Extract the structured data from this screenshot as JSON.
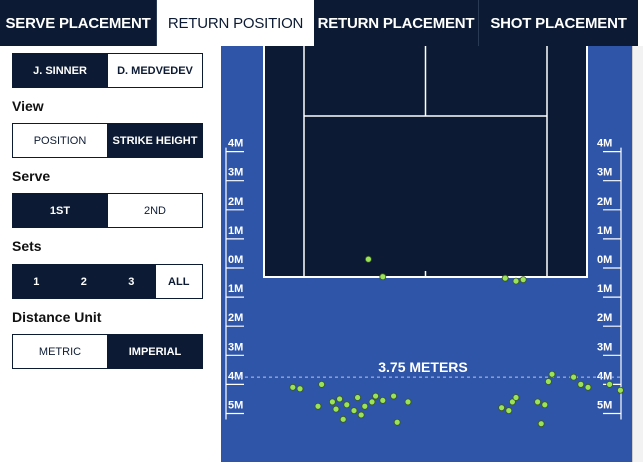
{
  "tabs": [
    {
      "label": "SERVE PLACEMENT",
      "active": false
    },
    {
      "label": "RETURN POSITION",
      "active": true
    },
    {
      "label": "RETURN PLACEMENT",
      "active": false
    },
    {
      "label": "SHOT PLACEMENT",
      "active": false
    }
  ],
  "players": {
    "options": [
      "J. SINNER",
      "D. MEDVEDEV"
    ],
    "selected": "J. SINNER"
  },
  "view": {
    "label": "View",
    "options": [
      "POSITION",
      "STRIKE HEIGHT"
    ],
    "selected": "STRIKE HEIGHT"
  },
  "serve": {
    "label": "Serve",
    "options": [
      "1ST",
      "2ND"
    ],
    "selected": "1ST"
  },
  "sets": {
    "label": "Sets",
    "options": [
      "1",
      "2",
      "3",
      "ALL"
    ],
    "selected": "ALL"
  },
  "distance_unit": {
    "label": "Distance Unit",
    "options": [
      "METRIC",
      "IMPERIAL"
    ],
    "selected": "IMPERIAL"
  },
  "court": {
    "meter_labels": [
      "4M",
      "3M",
      "2M",
      "1M",
      "0M",
      "1M",
      "2M",
      "3M",
      "4M",
      "5M"
    ],
    "meter_values": [
      4,
      3,
      2,
      1,
      0,
      -1,
      -2,
      -3,
      -4,
      -5
    ],
    "avg_distance_label": "3.75 METERS",
    "avg_distance_m": -3.75,
    "colors": {
      "court": "#0c1b33",
      "surround": "#2f55a8",
      "lines": "#ffffff",
      "dot": "#9be35a"
    },
    "return_points": [
      {
        "side": 0.08,
        "depth": -4.1
      },
      {
        "side": 0.1,
        "depth": -4.15
      },
      {
        "side": 0.16,
        "depth": -4.0
      },
      {
        "side": 0.15,
        "depth": -4.75
      },
      {
        "side": 0.19,
        "depth": -4.6
      },
      {
        "side": 0.21,
        "depth": -4.5
      },
      {
        "side": 0.2,
        "depth": -4.85
      },
      {
        "side": 0.23,
        "depth": -4.7
      },
      {
        "side": 0.25,
        "depth": -4.9
      },
      {
        "side": 0.26,
        "depth": -4.45
      },
      {
        "side": 0.28,
        "depth": -4.75
      },
      {
        "side": 0.3,
        "depth": -4.6
      },
      {
        "side": 0.31,
        "depth": -4.4
      },
      {
        "side": 0.33,
        "depth": -4.55
      },
      {
        "side": 0.36,
        "depth": -4.4
      },
      {
        "side": 0.4,
        "depth": -4.6
      },
      {
        "side": 0.37,
        "depth": -5.3
      },
      {
        "side": 0.22,
        "depth": -5.2
      },
      {
        "side": 0.27,
        "depth": -5.05
      },
      {
        "side": 0.29,
        "depth": 0.3
      },
      {
        "side": 0.33,
        "depth": -0.3
      },
      {
        "side": 0.67,
        "depth": -0.35
      },
      {
        "side": 0.7,
        "depth": -0.45
      },
      {
        "side": 0.72,
        "depth": -0.4
      },
      {
        "side": 0.66,
        "depth": -4.8
      },
      {
        "side": 0.68,
        "depth": -4.9
      },
      {
        "side": 0.69,
        "depth": -4.6
      },
      {
        "side": 0.7,
        "depth": -4.45
      },
      {
        "side": 0.76,
        "depth": -4.6
      },
      {
        "side": 0.78,
        "depth": -4.7
      },
      {
        "side": 0.79,
        "depth": -3.9
      },
      {
        "side": 0.8,
        "depth": -3.65
      },
      {
        "side": 0.86,
        "depth": -3.75
      },
      {
        "side": 0.88,
        "depth": -4.0
      },
      {
        "side": 0.9,
        "depth": -4.1
      },
      {
        "side": 0.96,
        "depth": -4.0
      },
      {
        "side": 0.99,
        "depth": -4.2
      },
      {
        "side": 0.77,
        "depth": -5.35
      }
    ]
  }
}
